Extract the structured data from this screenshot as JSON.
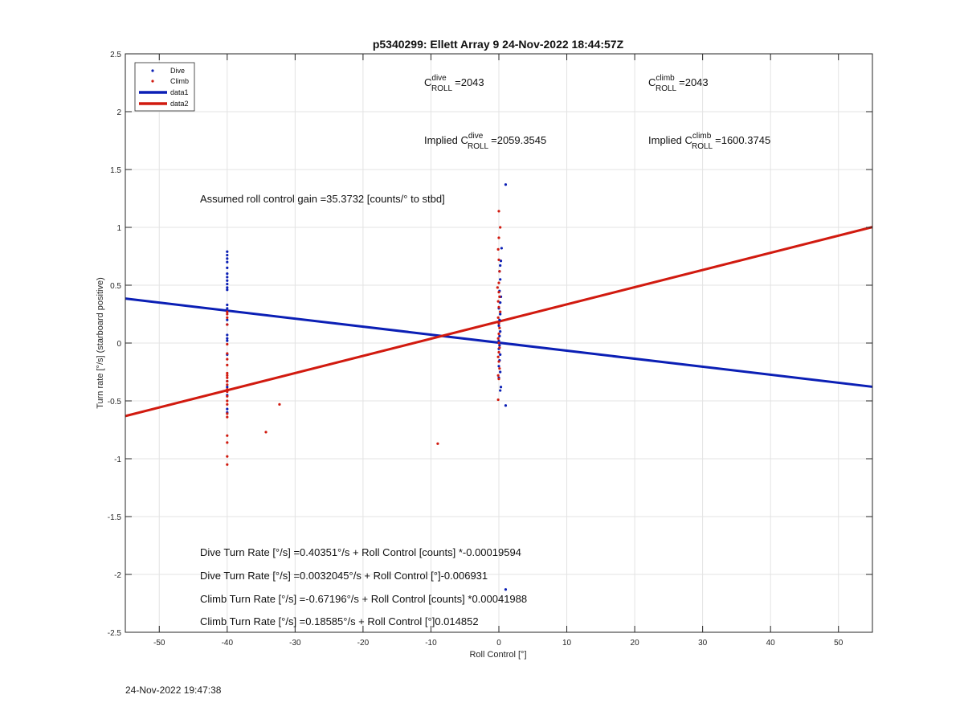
{
  "chart_data": {
    "type": "scatter",
    "title": "p5340299: Ellett Array 9 24-Nov-2022 18:44:57Z",
    "xlabel": "Roll Control [°]",
    "ylabel": "Turn rate [°/s] (starboard positive)",
    "xlim": [
      -55,
      55
    ],
    "ylim": [
      -2.5,
      2.5
    ],
    "xticks": [
      -50,
      -40,
      -30,
      -20,
      -10,
      0,
      10,
      20,
      30,
      40,
      50
    ],
    "yticks": [
      -2.5,
      -2,
      -1.5,
      -1,
      -0.5,
      0,
      0.5,
      1,
      1.5,
      2,
      2.5
    ],
    "grid": true,
    "legend_position": "top-left",
    "colors": {
      "dive": "#0b1fb5",
      "climb": "#d11a0f",
      "axis": "#262626",
      "grid": "#e3e3e3"
    },
    "series": [
      {
        "name": "Dive",
        "kind": "points",
        "color": "#0b1fb5",
        "points": [
          [
            -40,
            0.79
          ],
          [
            -40,
            0.76
          ],
          [
            -40,
            0.73
          ],
          [
            -40,
            0.7
          ],
          [
            -40,
            0.65
          ],
          [
            -40,
            0.6
          ],
          [
            -40,
            0.57
          ],
          [
            -40,
            0.54
          ],
          [
            -40,
            0.51
          ],
          [
            -40,
            0.48
          ],
          [
            -40,
            0.46
          ],
          [
            -40,
            0.33
          ],
          [
            -40,
            0.3
          ],
          [
            -40,
            0.27
          ],
          [
            -40,
            0.2
          ],
          [
            -40,
            0.16
          ],
          [
            -40,
            0.07
          ],
          [
            -40,
            0.04
          ],
          [
            -40,
            0.02
          ],
          [
            -40,
            -0.1
          ],
          [
            -40,
            -0.33
          ],
          [
            -40,
            -0.38
          ],
          [
            -40,
            -0.45
          ],
          [
            -40,
            -0.57
          ],
          [
            -40,
            -0.6
          ],
          [
            1,
            1.37
          ],
          [
            0.4,
            0.82
          ],
          [
            0.3,
            0.71
          ],
          [
            0.2,
            0.67
          ],
          [
            0.1,
            0.62
          ],
          [
            0.2,
            0.55
          ],
          [
            0.1,
            0.45
          ],
          [
            0.3,
            0.4
          ],
          [
            0.2,
            0.35
          ],
          [
            0,
            0.3
          ],
          [
            0.2,
            0.25
          ],
          [
            0.1,
            0.2
          ],
          [
            0,
            0.15
          ],
          [
            0.2,
            0.1
          ],
          [
            0.1,
            0.06
          ],
          [
            0,
            0.02
          ],
          [
            0.1,
            -0.02
          ],
          [
            0,
            -0.05
          ],
          [
            0.2,
            -0.1
          ],
          [
            0.1,
            -0.15
          ],
          [
            0,
            -0.2
          ],
          [
            0.2,
            -0.25
          ],
          [
            0,
            -0.3
          ],
          [
            0.3,
            -0.38
          ],
          [
            0.2,
            -0.41
          ],
          [
            1,
            -0.54
          ],
          [
            1,
            -2.13
          ]
        ]
      },
      {
        "name": "Climb",
        "kind": "points",
        "color": "#d11a0f",
        "points": [
          [
            -40,
            0.27
          ],
          [
            -40,
            0.25
          ],
          [
            -40,
            0.22
          ],
          [
            -40,
            0.16
          ],
          [
            -40,
            -0.01
          ],
          [
            -40,
            -0.09
          ],
          [
            -40,
            -0.14
          ],
          [
            -40,
            -0.19
          ],
          [
            -40,
            -0.26
          ],
          [
            -40,
            -0.28
          ],
          [
            -40,
            -0.3
          ],
          [
            -40,
            -0.33
          ],
          [
            -40,
            -0.36
          ],
          [
            -40,
            -0.4
          ],
          [
            -40,
            -0.42
          ],
          [
            -40,
            -0.46
          ],
          [
            -40,
            -0.5
          ],
          [
            -40,
            -0.53
          ],
          [
            -40,
            -0.61
          ],
          [
            -40,
            -0.64
          ],
          [
            -40,
            -0.8
          ],
          [
            -40,
            -0.86
          ],
          [
            -40,
            -0.98
          ],
          [
            -40,
            -1.05
          ],
          [
            -32.3,
            -0.53
          ],
          [
            -34.3,
            -0.77
          ],
          [
            -9,
            -0.87
          ],
          [
            0,
            1.14
          ],
          [
            0.2,
            1.0
          ],
          [
            0,
            0.91
          ],
          [
            -0.1,
            0.81
          ],
          [
            0,
            0.72
          ],
          [
            0.1,
            0.62
          ],
          [
            0,
            0.52
          ],
          [
            -0.2,
            0.48
          ],
          [
            0,
            0.44
          ],
          [
            0.1,
            0.4
          ],
          [
            -0.1,
            0.36
          ],
          [
            0,
            0.31
          ],
          [
            0.2,
            0.27
          ],
          [
            -0.1,
            0.22
          ],
          [
            0,
            0.17
          ],
          [
            0.1,
            0.13
          ],
          [
            0,
            0.08
          ],
          [
            -0.1,
            0.04
          ],
          [
            0,
            0.0
          ],
          [
            0.1,
            -0.04
          ],
          [
            0,
            -0.08
          ],
          [
            -0.1,
            -0.12
          ],
          [
            0,
            -0.16
          ],
          [
            0.1,
            -0.22
          ],
          [
            -0.1,
            -0.28
          ],
          [
            0,
            -0.31
          ],
          [
            -0.1,
            -0.49
          ]
        ]
      },
      {
        "name": "data1",
        "kind": "line",
        "color": "#0b1fb5",
        "intercept": 0.0032045,
        "slope": -0.006931
      },
      {
        "name": "data2",
        "kind": "line",
        "color": "#d11a0f",
        "intercept": 0.18585,
        "slope": 0.014852
      }
    ],
    "annotations": {
      "c_dive": {
        "base": "C",
        "sup": "dive",
        "sub": "ROLL",
        "value": "=2043"
      },
      "c_climb": {
        "base": "C",
        "sup": "climb",
        "sub": "ROLL",
        "value": "=2043"
      },
      "implied_dive": {
        "prefix": "Implied ",
        "base": "C",
        "sup": "dive",
        "sub": "ROLL",
        "value": "=2059.3545"
      },
      "implied_climb": {
        "prefix": "Implied ",
        "base": "C",
        "sup": "climb",
        "sub": "ROLL",
        "value": "=1600.3745"
      },
      "gain": "Assumed roll control gain =35.3732 [counts/° to stbd]",
      "eq_dive_counts": "Dive Turn Rate [°/s] =0.40351°/s + Roll Control [counts] *-0.00019594",
      "eq_dive_deg": "Dive Turn Rate [°/s] =0.0032045°/s + Roll Control [°]-0.006931",
      "eq_climb_counts": "Climb Turn Rate [°/s] =-0.67196°/s + Roll Control [counts] *0.00041988",
      "eq_climb_deg": "Climb Turn Rate [°/s] =0.18585°/s + Roll Control [°]0.014852"
    }
  },
  "footer_timestamp": "24-Nov-2022 19:47:38"
}
